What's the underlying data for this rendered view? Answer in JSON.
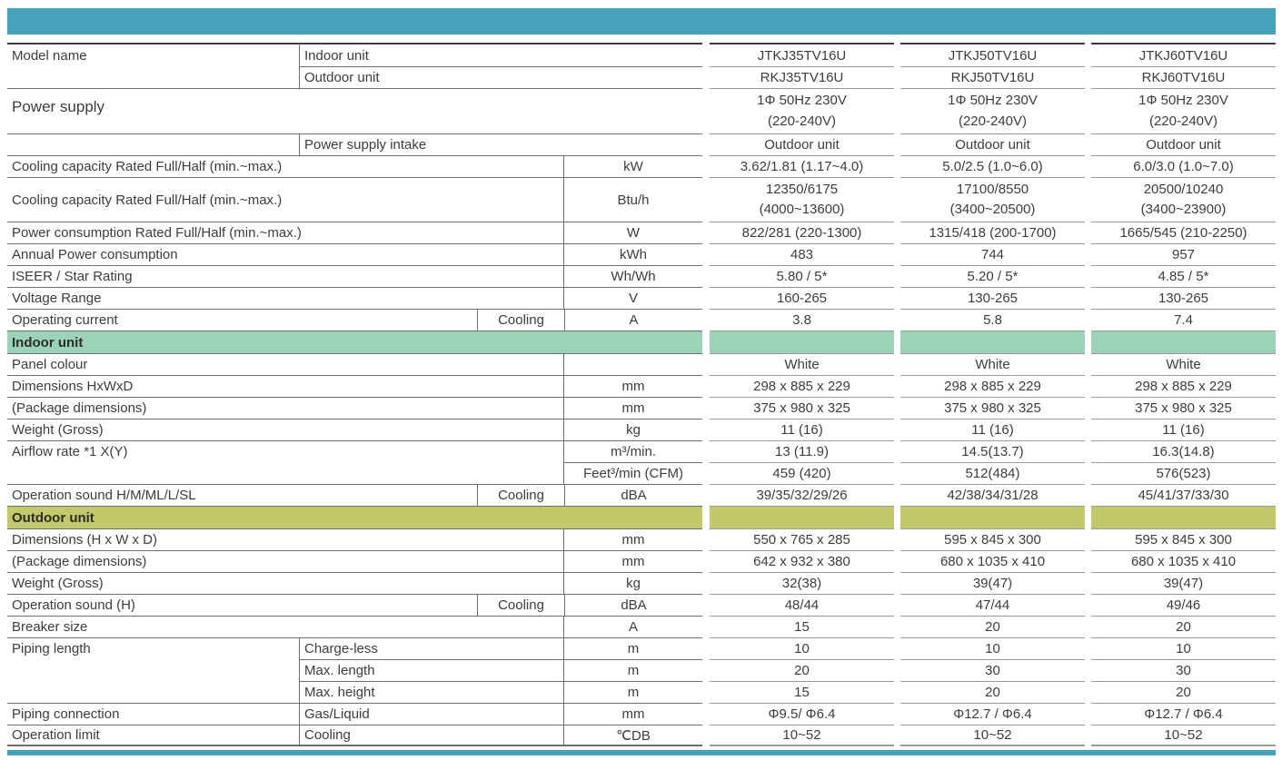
{
  "colors": {
    "accent_teal": "#45a2ba",
    "indoor_band_green": "#9cd3b8",
    "outdoor_band_olive": "#c3c96a"
  },
  "rows": {
    "model_indoor": {
      "label": "Model name",
      "sub": "Indoor unit",
      "v": [
        "JTKJ35TV16U",
        "JTKJ50TV16U",
        "JTKJ60TV16U"
      ]
    },
    "model_outdoor": {
      "sub": "Outdoor unit",
      "v": [
        "RKJ35TV16U",
        "RKJ50TV16U",
        "RKJ60TV16U"
      ]
    },
    "power_supply": {
      "label": "Power supply",
      "v1": [
        "1Φ 50Hz 230V",
        "1Φ 50Hz 230V",
        "1Φ 50Hz 230V"
      ],
      "v2": [
        "(220-240V)",
        "(220-240V)",
        "(220-240V)"
      ]
    },
    "power_supply_intake": {
      "sub": "Power supply intake",
      "v": [
        "Outdoor unit",
        "Outdoor unit",
        "Outdoor unit"
      ]
    },
    "cooling_capacity_kw": {
      "label": "Cooling capacity Rated Full/Half (min.~max.)",
      "unit": "kW",
      "v": [
        "3.62/1.81 (1.17~4.0)",
        "5.0/2.5 (1.0~6.0)",
        "6.0/3.0 (1.0~7.0)"
      ]
    },
    "cooling_capacity_btu": {
      "label": "Cooling capacity Rated Full/Half (min.~max.)",
      "unit": "Btu/h",
      "v1": [
        "12350/6175",
        "17100/8550",
        "20500/10240"
      ],
      "v2": [
        "(4000~13600)",
        "(3400~20500)",
        "(3400~23900)"
      ]
    },
    "power_consumption": {
      "label": "Power consumption Rated Full/Half (min.~max.)",
      "unit": "W",
      "v": [
        "822/281 (220-1300)",
        "1315/418 (200-1700)",
        "1665/545 (210-2250)"
      ]
    },
    "annual_power": {
      "label": "Annual Power consumption",
      "unit": "kWh",
      "v": [
        "483",
        "744",
        "957"
      ]
    },
    "iseer": {
      "label": "ISEER / Star Rating",
      "unit": "Wh/Wh",
      "v": [
        "5.80 / 5*",
        "5.20 / 5*",
        "4.85 / 5*"
      ]
    },
    "voltage_range": {
      "label": "Voltage Range",
      "unit": "V",
      "v": [
        "160-265",
        "130-265",
        "130-265"
      ]
    },
    "operating_current": {
      "label": "Operating current",
      "mode": "Cooling",
      "unit": "A",
      "v": [
        "3.8",
        "5.8",
        "7.4"
      ]
    },
    "indoor_section": {
      "label": "Indoor unit"
    },
    "panel_colour": {
      "label": "Panel colour",
      "unit": "",
      "v": [
        "White",
        "White",
        "White"
      ]
    },
    "indoor_dimensions": {
      "label": "Dimensions HxWxD",
      "unit": "mm",
      "v": [
        "298 x 885 x 229",
        "298 x 885 x 229",
        "298 x 885 x 229"
      ]
    },
    "indoor_package": {
      "label": "(Package dimensions)",
      "unit": "mm",
      "v": [
        "375 x 980 x 325",
        "375 x 980 x 325",
        "375 x 980 x 325"
      ]
    },
    "indoor_weight": {
      "label": "Weight (Gross)",
      "unit": "kg",
      "v": [
        "11 (16)",
        "11 (16)",
        "11 (16)"
      ]
    },
    "airflow_m3": {
      "label": "Airflow rate *1 X(Y)",
      "unit": "m³/min.",
      "v": [
        "13 (11.9)",
        "14.5(13.7)",
        "16.3(14.8)"
      ]
    },
    "airflow_cfm": {
      "unit": "Feet³/min (CFM)",
      "v": [
        "459 (420)",
        "512(484)",
        "576(523)"
      ]
    },
    "indoor_sound": {
      "label": "Operation sound H/M/ML/L/SL",
      "mode": "Cooling",
      "unit": "dBA",
      "v": [
        "39/35/32/29/26",
        "42/38/34/31/28",
        "45/41/37/33/30"
      ]
    },
    "outdoor_section": {
      "label": "Outdoor unit"
    },
    "outdoor_dimensions": {
      "label": "Dimensions (H x W x D)",
      "unit": "mm",
      "v": [
        "550 x 765 x 285",
        "595 x 845 x 300",
        "595 x 845 x 300"
      ]
    },
    "outdoor_package": {
      "label": "(Package dimensions)",
      "unit": "mm",
      "v": [
        "642 x 932 x 380",
        "680 x 1035 x 410",
        "680 x 1035 x 410"
      ]
    },
    "outdoor_weight": {
      "label": "Weight (Gross)",
      "unit": "kg",
      "v": [
        "32(38)",
        "39(47)",
        "39(47)"
      ]
    },
    "outdoor_sound": {
      "label": "Operation sound (H)",
      "mode": "Cooling",
      "unit": "dBA",
      "v": [
        "48/44",
        "47/44",
        "49/46"
      ]
    },
    "breaker_size": {
      "label": "Breaker size",
      "unit": "A",
      "v": [
        "15",
        "20",
        "20"
      ]
    },
    "piping_chargeless": {
      "label": "Piping length",
      "sub": "Charge-less",
      "unit": "m",
      "v": [
        "10",
        "10",
        "10"
      ]
    },
    "piping_max_length": {
      "sub": "Max. length",
      "unit": "m",
      "v": [
        "20",
        "30",
        "30"
      ]
    },
    "piping_max_height": {
      "sub": "Max. height",
      "unit": "m",
      "v": [
        "15",
        "20",
        "20"
      ]
    },
    "piping_connection": {
      "label": "Piping connection",
      "sub": "Gas/Liquid",
      "unit": "mm",
      "v": [
        "Φ9.5/ Φ6.4",
        "Φ12.7 / Φ6.4",
        "Φ12.7 / Φ6.4"
      ]
    },
    "operation_limit": {
      "label": "Operation limit",
      "sub": "Cooling",
      "unit": "℃DB",
      "v": [
        "10~52",
        "10~52",
        "10~52"
      ]
    }
  }
}
